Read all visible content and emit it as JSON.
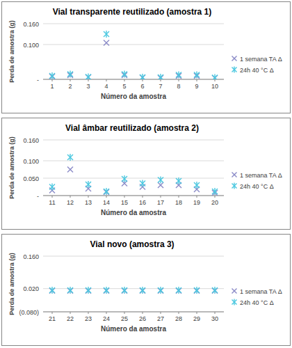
{
  "chart_data": [
    {
      "type": "scatter",
      "title": "Vial transparente reutilizado (amostra 1)",
      "x_label": "Número da amostra",
      "y_label": "Perda de amostra (g)",
      "categories": [
        "1",
        "2",
        "3",
        "4",
        "5",
        "6",
        "7",
        "8",
        "9",
        "10"
      ],
      "series": [
        {
          "name": "1 semana TA Δ",
          "color": "#8c8cc8",
          "marker": "x",
          "values": [
            0.008,
            0.012,
            0.006,
            0.105,
            0.012,
            0.005,
            0.004,
            0.01,
            0.01,
            0.004
          ]
        },
        {
          "name": "24h 40 °C Δ",
          "color": "#4bc8e0",
          "marker": "asterisk",
          "values": [
            0.01,
            0.015,
            0.007,
            0.13,
            0.015,
            0.006,
            0.006,
            0.013,
            0.013,
            0.005
          ]
        }
      ],
      "ylim": [
        0,
        0.16
      ],
      "yticks": [
        {
          "value": 0,
          "label": "-"
        },
        {
          "value": 0.1,
          "label": "0.100"
        },
        {
          "value": 0.16,
          "label": "0.160"
        }
      ],
      "grid": true,
      "legend": "right"
    },
    {
      "type": "scatter",
      "title": "Vial âmbar reutilizado (amostra 2)",
      "x_label": "Número da amostra",
      "y_label": "Perda de amostra (g)",
      "categories": [
        "11",
        "12",
        "13",
        "14",
        "15",
        "16",
        "17",
        "18",
        "19",
        "20"
      ],
      "series": [
        {
          "name": "1 semana TA Δ",
          "color": "#8c8cc8",
          "marker": "x",
          "values": [
            0.015,
            0.075,
            0.02,
            0.01,
            0.035,
            0.025,
            0.03,
            0.03,
            0.018,
            0.008
          ]
        },
        {
          "name": "24h 40 °C Δ",
          "color": "#4bc8e0",
          "marker": "asterisk",
          "values": [
            0.025,
            0.11,
            0.032,
            0.012,
            0.048,
            0.035,
            0.045,
            0.042,
            0.03,
            0.012
          ]
        }
      ],
      "ylim": [
        0,
        0.16
      ],
      "yticks": [
        {
          "value": 0,
          "label": "-"
        },
        {
          "value": 0.05,
          "label": "0.050"
        },
        {
          "value": 0.1,
          "label": "0.100"
        },
        {
          "value": 0.16,
          "label": "0.160"
        }
      ],
      "grid": true,
      "legend": "right"
    },
    {
      "type": "scatter",
      "title": "Vial novo (amostra 3)",
      "x_label": "Número da amostra",
      "y_label": "Perda de amostra (g)",
      "categories": [
        "21",
        "22",
        "23",
        "24",
        "25",
        "26",
        "27",
        "28",
        "29",
        "30"
      ],
      "series": [
        {
          "name": "1 semana TA Δ",
          "color": "#8c8cc8",
          "marker": "x",
          "values": [
            0.011,
            0.011,
            0.011,
            0.011,
            0.011,
            0.011,
            0.011,
            0.011,
            0.011,
            0.011
          ]
        },
        {
          "name": "24h 40 °C Δ",
          "color": "#4bc8e0",
          "marker": "asterisk",
          "values": [
            0.013,
            0.013,
            0.013,
            0.013,
            0.013,
            0.013,
            0.013,
            0.013,
            0.013,
            0.013
          ]
        }
      ],
      "ylim": [
        -0.08,
        0.16
      ],
      "yticks": [
        {
          "value": -0.08,
          "label": "(0.080)"
        },
        {
          "value": 0.02,
          "label": "0.020"
        },
        {
          "value": 0.16,
          "label": "0.160"
        }
      ],
      "grid": true,
      "legend": "right"
    }
  ]
}
